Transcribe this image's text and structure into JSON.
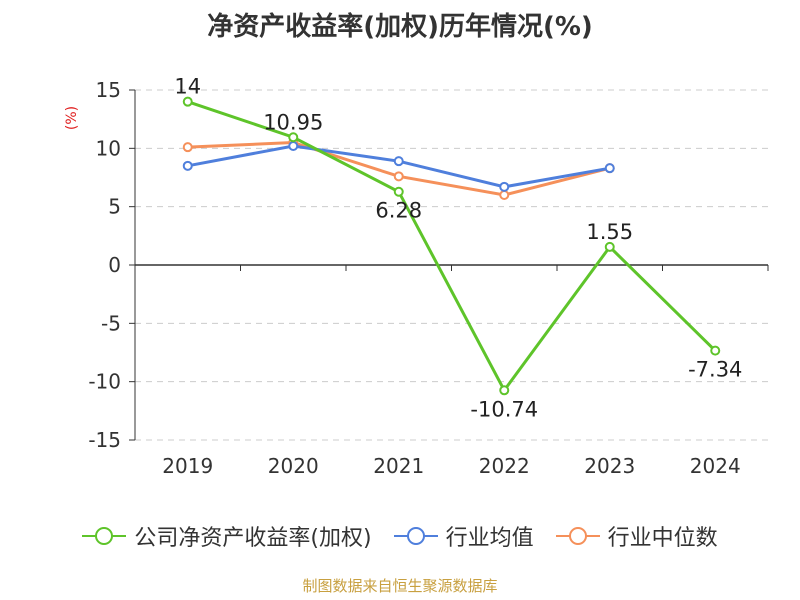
{
  "title": "净资产收益率(加权)历年情况(%)",
  "source": "制图数据来自恒生聚源数据库",
  "colors": {
    "company": "#5ec42a",
    "avg": "#4f7fdc",
    "median": "#f5905a",
    "axis": "#333333",
    "grid": "#cccccc"
  },
  "chart_data": {
    "type": "line",
    "title": "净资产收益率(加权)历年情况(%)",
    "ylabel": "(%)",
    "xlabel": "",
    "categories": [
      "2019",
      "2020",
      "2021",
      "2022",
      "2023",
      "2024"
    ],
    "ylim": [
      -15,
      15
    ],
    "yticks": [
      15,
      10,
      5,
      0,
      -5,
      -10,
      -15
    ],
    "grid": true,
    "legend_position": "bottom",
    "series": [
      {
        "name": "公司净资产收益率(加权)",
        "color": "#5ec42a",
        "values": [
          14,
          10.95,
          6.28,
          -10.74,
          1.55,
          -7.34
        ],
        "labels": [
          "14",
          "10.95",
          "6.28",
          "-10.74",
          "1.55",
          "-7.34"
        ]
      },
      {
        "name": "行业均值",
        "color": "#4f7fdc",
        "values": [
          8.5,
          10.2,
          8.9,
          6.7,
          8.3,
          null
        ]
      },
      {
        "name": "行业中位数",
        "color": "#f5905a",
        "values": [
          10.1,
          10.5,
          7.6,
          6.0,
          8.3,
          null
        ]
      }
    ]
  }
}
